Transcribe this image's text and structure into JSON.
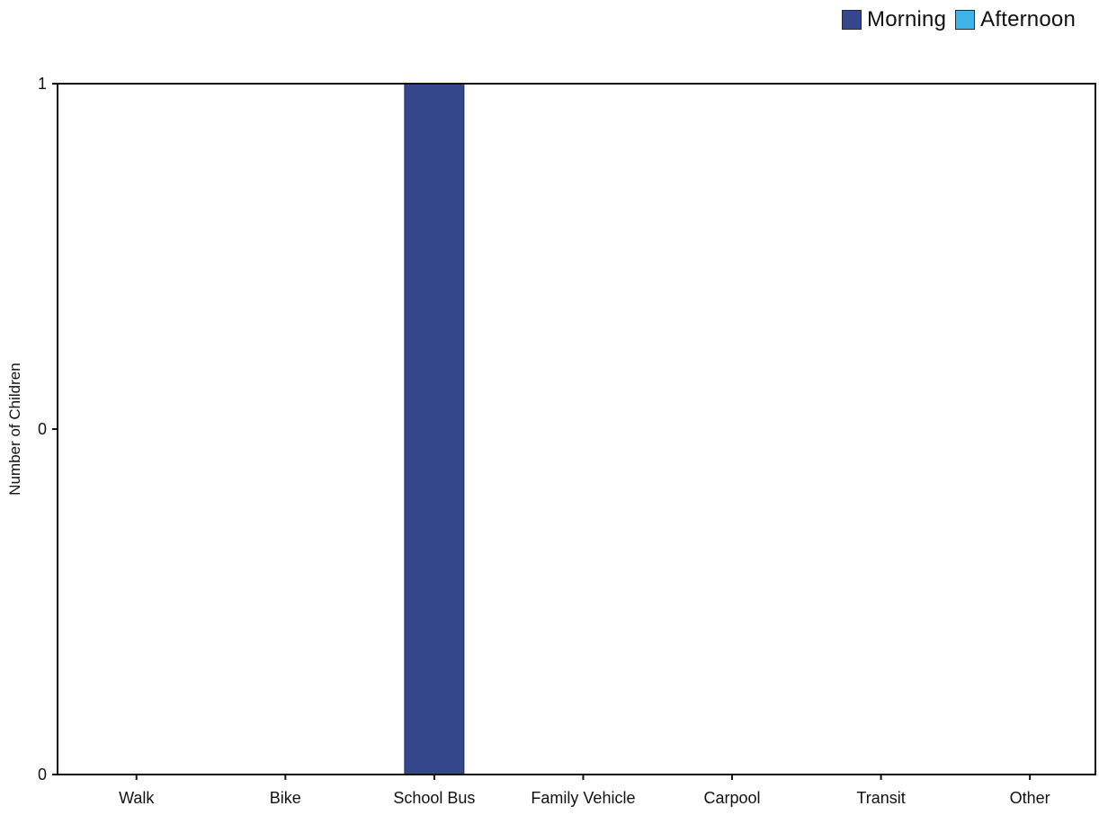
{
  "chart_data": {
    "type": "bar",
    "title": "",
    "xlabel": "",
    "ylabel": "Number of Children",
    "categories": [
      "Walk",
      "Bike",
      "School Bus",
      "Family Vehicle",
      "Carpool",
      "Transit",
      "Other"
    ],
    "series": [
      {
        "name": "Morning",
        "color": "#34478a",
        "values": [
          0,
          0,
          1,
          0,
          0,
          0,
          0
        ]
      },
      {
        "name": "Afternoon",
        "color": "#3fb3e6",
        "values": [
          0,
          0,
          0,
          0,
          0,
          0,
          0
        ]
      }
    ],
    "ylim": [
      0,
      1
    ],
    "y_ticks": [
      {
        "value": 0,
        "label": "0"
      },
      {
        "value": 0.5,
        "label": "0"
      },
      {
        "value": 1,
        "label": "1"
      }
    ],
    "grid": false,
    "legend_position": "top-right"
  }
}
